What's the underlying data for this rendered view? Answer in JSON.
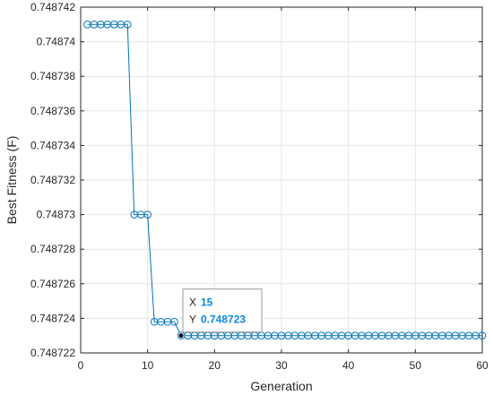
{
  "chart_data": {
    "type": "line",
    "xlabel": "Generation",
    "ylabel": "Best Fitness (F)",
    "xlim": [
      0,
      60
    ],
    "ylim": [
      0.748722,
      0.748742
    ],
    "xticks": [
      0,
      10,
      20,
      30,
      40,
      50,
      60
    ],
    "yticks": [
      0.748722,
      0.748724,
      0.748726,
      0.748728,
      0.74873,
      0.748732,
      0.748734,
      0.748736,
      0.748738,
      0.74874,
      0.748742
    ],
    "ytick_labels": [
      "0.748722",
      "0.748724",
      "0.748726",
      "0.748728",
      "0.74873",
      "0.748732",
      "0.748734",
      "0.748736",
      "0.748738",
      "0.74874",
      "0.748742"
    ],
    "grid": true,
    "marker": "circle",
    "color": "#0072bd",
    "series": [
      {
        "x": [
          1,
          2,
          3,
          4,
          5,
          6,
          7,
          8,
          9,
          10,
          11,
          12,
          13,
          14,
          15,
          16,
          17,
          18,
          19,
          20,
          21,
          22,
          23,
          24,
          25,
          26,
          27,
          28,
          29,
          30,
          31,
          32,
          33,
          34,
          35,
          36,
          37,
          38,
          39,
          40,
          41,
          42,
          43,
          44,
          45,
          46,
          47,
          48,
          49,
          50,
          51,
          52,
          53,
          54,
          55,
          56,
          57,
          58,
          59,
          60
        ],
        "y": [
          0.748741,
          0.748741,
          0.748741,
          0.748741,
          0.748741,
          0.748741,
          0.748741,
          0.74873,
          0.74873,
          0.74873,
          0.7487238,
          0.7487238,
          0.7487238,
          0.7487238,
          0.748723,
          0.748723,
          0.748723,
          0.748723,
          0.748723,
          0.748723,
          0.748723,
          0.748723,
          0.748723,
          0.748723,
          0.748723,
          0.748723,
          0.748723,
          0.748723,
          0.748723,
          0.748723,
          0.748723,
          0.748723,
          0.748723,
          0.748723,
          0.748723,
          0.748723,
          0.748723,
          0.748723,
          0.748723,
          0.748723,
          0.748723,
          0.748723,
          0.748723,
          0.748723,
          0.748723,
          0.748723,
          0.748723,
          0.748723,
          0.748723,
          0.748723,
          0.748723,
          0.748723,
          0.748723,
          0.748723,
          0.748723,
          0.748723,
          0.748723,
          0.748723,
          0.748723,
          0.748723
        ]
      }
    ],
    "datatip": {
      "x_key": "X",
      "x_value": "15",
      "y_key": "Y",
      "y_value": "0.748723",
      "point": [
        15,
        0.748723
      ]
    }
  }
}
